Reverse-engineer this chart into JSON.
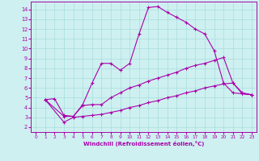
{
  "xlabel": "Windchill (Refroidissement éolien,°C)",
  "xlim": [
    -0.5,
    23.5
  ],
  "ylim": [
    1.5,
    14.8
  ],
  "xticks": [
    0,
    1,
    2,
    3,
    4,
    5,
    6,
    7,
    8,
    9,
    10,
    11,
    12,
    13,
    14,
    15,
    16,
    17,
    18,
    19,
    20,
    21,
    22,
    23
  ],
  "yticks": [
    2,
    3,
    4,
    5,
    6,
    7,
    8,
    9,
    10,
    11,
    12,
    13,
    14
  ],
  "bg_color": "#cef0f0",
  "line_color": "#aa00aa",
  "grid_color": "#aadddd",
  "curves": [
    {
      "x": [
        1,
        2,
        3,
        4,
        5,
        6,
        7,
        8,
        9,
        10,
        11,
        12,
        13,
        14,
        15,
        16,
        17,
        18,
        19,
        20,
        21,
        22,
        23
      ],
      "y": [
        4.8,
        4.9,
        3.2,
        3.1,
        4.3,
        6.5,
        8.5,
        8.5,
        7.8,
        8.5,
        11.5,
        14.2,
        14.3,
        13.7,
        13.2,
        12.7,
        12.0,
        11.5,
        9.8,
        6.5,
        5.5,
        5.4,
        5.3
      ]
    },
    {
      "x": [
        1,
        3,
        4,
        5,
        6,
        7,
        8,
        9,
        10,
        11,
        12,
        13,
        14,
        15,
        16,
        17,
        18,
        19,
        20,
        21,
        22,
        23
      ],
      "y": [
        4.8,
        3.1,
        3.1,
        4.2,
        4.3,
        4.3,
        5.0,
        5.5,
        6.0,
        6.3,
        6.7,
        7.0,
        7.3,
        7.6,
        8.0,
        8.3,
        8.5,
        8.8,
        9.1,
        6.5,
        5.5,
        5.3
      ]
    },
    {
      "x": [
        1,
        3,
        4,
        5,
        6,
        7,
        8,
        9,
        10,
        11,
        12,
        13,
        14,
        15,
        16,
        17,
        18,
        19,
        20,
        21,
        22,
        23
      ],
      "y": [
        4.8,
        2.5,
        3.0,
        3.1,
        3.2,
        3.3,
        3.5,
        3.7,
        4.0,
        4.2,
        4.5,
        4.7,
        5.0,
        5.2,
        5.5,
        5.7,
        6.0,
        6.2,
        6.4,
        6.5,
        5.4,
        5.3
      ]
    }
  ]
}
